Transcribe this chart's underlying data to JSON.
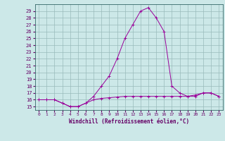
{
  "title": "",
  "xlabel": "Windchill (Refroidissement éolien,°C)",
  "background_color": "#cce8e8",
  "line_color": "#990099",
  "grid_color": "#99bbbb",
  "x_hours": [
    0,
    1,
    2,
    3,
    4,
    5,
    6,
    7,
    8,
    9,
    10,
    11,
    12,
    13,
    14,
    15,
    16,
    17,
    18,
    19,
    20,
    21,
    22,
    23
  ],
  "y_temp": [
    16,
    16,
    16,
    15.5,
    15,
    15,
    15.5,
    16.5,
    18,
    19.5,
    22,
    25,
    27,
    29,
    29.5,
    28,
    26,
    18,
    17,
    16.5,
    16.5,
    17,
    17,
    16.5
  ],
  "y_windchill": [
    16,
    16,
    16,
    15.5,
    15,
    15,
    15.5,
    16,
    16.2,
    16.3,
    16.4,
    16.5,
    16.5,
    16.5,
    16.5,
    16.5,
    16.5,
    16.5,
    16.5,
    16.5,
    16.7,
    17,
    17,
    16.5
  ],
  "ylim_min": 14.5,
  "ylim_max": 30.0,
  "yticks": [
    15,
    16,
    17,
    18,
    19,
    20,
    21,
    22,
    23,
    24,
    25,
    26,
    27,
    28,
    29
  ],
  "xtick_labels": [
    "0",
    "1",
    "2",
    "3",
    "4",
    "5",
    "6",
    "7",
    "8",
    "9",
    "10",
    "11",
    "12",
    "13",
    "14",
    "15",
    "16",
    "17",
    "18",
    "19",
    "20",
    "21",
    "22",
    "23"
  ],
  "axis_color": "#660066",
  "text_color": "#660066",
  "spine_color": "#336666",
  "marker": "+"
}
